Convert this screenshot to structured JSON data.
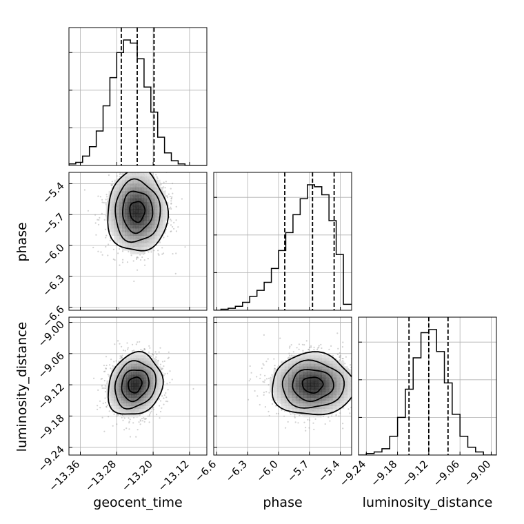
{
  "chart_data": {
    "type": "corner",
    "parameters": [
      "geocent_time",
      "phase",
      "luminosity_distance"
    ],
    "labels": {
      "x": [
        "geocent_time",
        "phase",
        "luminosity_distance"
      ],
      "y": [
        "",
        "phase",
        "luminosity_distance"
      ]
    },
    "ranges": {
      "geocent_time": [
        -13.385,
        -13.082
      ],
      "phase": [
        -6.63,
        -5.29
      ],
      "luminosity_distance": [
        -9.255,
        -8.99
      ]
    },
    "ticks": {
      "geocent_time": {
        "values": [
          -13.36,
          -13.28,
          -13.2,
          -13.12
        ],
        "labels": [
          "−13.36",
          "−13.28",
          "−13.20",
          "−13.12"
        ]
      },
      "phase": {
        "values": [
          -6.6,
          -6.3,
          -6.0,
          -5.7,
          -5.4
        ],
        "labels": [
          "−6.6",
          "−6.3",
          "−6.0",
          "−5.7",
          "−5.4"
        ]
      },
      "luminosity_distance": {
        "values": [
          -9.24,
          -9.18,
          -9.12,
          -9.06,
          -9.0
        ],
        "labels": [
          "−9.24",
          "−9.18",
          "−9.12",
          "−9.06",
          "−9.00"
        ]
      }
    },
    "marginals": {
      "geocent_time": {
        "bin_edges": [
          -13.385,
          -13.37,
          -13.355,
          -13.34,
          -13.325,
          -13.31,
          -13.295,
          -13.28,
          -13.265,
          -13.25,
          -13.235,
          -13.22,
          -13.205,
          -13.19,
          -13.175,
          -13.16,
          -13.145,
          -13.13,
          -13.115,
          -13.1,
          -13.082
        ],
        "counts": [
          0.5,
          1,
          3,
          6,
          11,
          19,
          28,
          36,
          40,
          39,
          34,
          25,
          17,
          9,
          4,
          1.5,
          0.5,
          0,
          0,
          0
        ],
        "quantiles": [
          -13.27,
          -13.235,
          -13.198
        ]
      },
      "phase": {
        "bin_edges": [
          -6.63,
          -6.56,
          -6.49,
          -6.42,
          -6.35,
          -6.28,
          -6.21,
          -6.14,
          -6.07,
          -6.0,
          -5.93,
          -5.86,
          -5.79,
          -5.72,
          -5.65,
          -5.58,
          -5.51,
          -5.44,
          -5.37,
          -5.29
        ],
        "counts": [
          0,
          0.5,
          1,
          2,
          4,
          7,
          10,
          14,
          21,
          30,
          39,
          48,
          56,
          63,
          62,
          58,
          45,
          28,
          3
        ],
        "quantiles": [
          -5.94,
          -5.67,
          -5.46
        ]
      },
      "luminosity_distance": {
        "bin_edges": [
          -9.255,
          -9.24,
          -9.225,
          -9.21,
          -9.195,
          -9.18,
          -9.165,
          -9.15,
          -9.135,
          -9.12,
          -9.105,
          -9.09,
          -9.075,
          -9.06,
          -9.045,
          -9.03,
          -9.015,
          -8.99
        ],
        "counts": [
          0,
          0.5,
          1,
          2,
          6,
          12,
          21,
          31,
          39,
          40,
          33,
          23,
          13,
          6,
          2.5,
          1,
          0
        ],
        "quantiles": [
          -9.158,
          -9.12,
          -9.083
        ]
      }
    },
    "joint": [
      {
        "x": "geocent_time",
        "y": "phase",
        "mean": [
          -13.235,
          -5.67
        ],
        "sigma": [
          0.033,
          0.2
        ],
        "rho": 0,
        "contour_levels_sigma": [
          0.5,
          1.0,
          1.5,
          2.0
        ]
      },
      {
        "x": "geocent_time",
        "y": "luminosity_distance",
        "mean": [
          -13.24,
          -9.12
        ],
        "sigma": [
          0.03,
          0.03
        ],
        "rho": 0.15,
        "contour_levels_sigma": [
          0.5,
          1.0,
          1.5,
          2.0
        ]
      },
      {
        "x": "phase",
        "y": "luminosity_distance",
        "mean": [
          -5.67,
          -9.12
        ],
        "sigma": [
          0.2,
          0.03
        ],
        "rho": 0,
        "contour_levels_sigma": [
          0.5,
          1.0,
          1.5,
          2.0
        ]
      }
    ],
    "grid": true
  }
}
